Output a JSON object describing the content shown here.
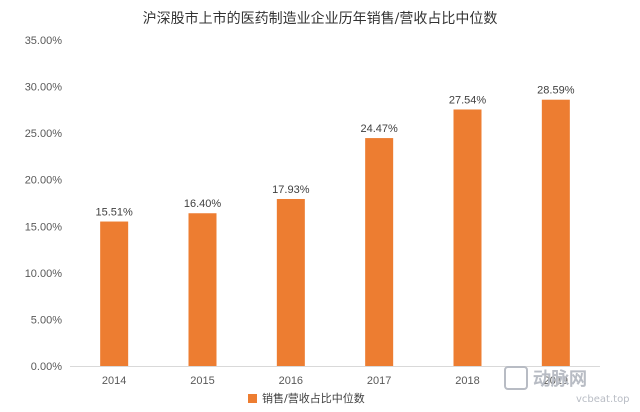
{
  "chart_data": {
    "type": "bar",
    "title": "沪深股市上市的医药制造业企业历年销售/营收占比中位数",
    "categories": [
      "2014",
      "2015",
      "2016",
      "2017",
      "2018",
      "2019"
    ],
    "series": [
      {
        "name": "销售/营收占比中位数",
        "values": [
          15.51,
          16.4,
          17.93,
          24.47,
          27.54,
          28.59
        ],
        "labels": [
          "15.51%",
          "16.40%",
          "17.93%",
          "24.47%",
          "27.54%",
          "28.59%"
        ]
      }
    ],
    "ylim": [
      0,
      35
    ],
    "yticks": [
      0,
      5,
      10,
      15,
      20,
      25,
      30,
      35
    ],
    "ytick_labels": [
      "0.00%",
      "5.00%",
      "10.00%",
      "15.00%",
      "20.00%",
      "25.00%",
      "30.00%",
      "35.00%"
    ],
    "grid": false,
    "legend_position": "bottom",
    "bar_color": "#ED7D31"
  },
  "watermark": {
    "brand": "动脉网",
    "site": "vcbeat.top"
  }
}
